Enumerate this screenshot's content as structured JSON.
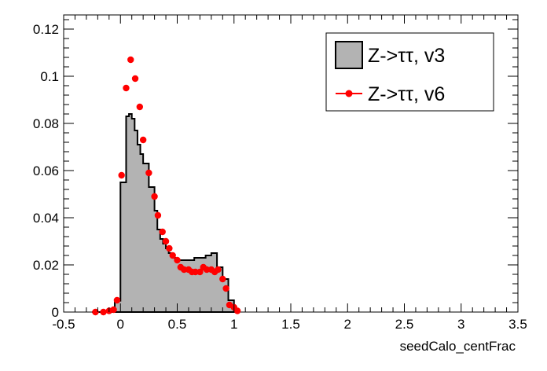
{
  "chart_data": {
    "type": "histogram",
    "xlabel": "seedCalo_centFrac",
    "ylabel": "",
    "xlim": [
      -0.5,
      3.5
    ],
    "ylim": [
      0,
      0.126
    ],
    "grid": false,
    "legend_position": "top-right",
    "xticks": [
      "-0.5",
      "0",
      "0.5",
      "1",
      "1.5",
      "2",
      "2.5",
      "3",
      "3.5"
    ],
    "yticks": [
      "0",
      "0.02",
      "0.04",
      "0.06",
      "0.08",
      "0.1",
      "0.12"
    ],
    "series": [
      {
        "name": "Z->ττ, v3",
        "style": "filled-histogram",
        "color": "#b3b3b3",
        "edges": [
          -0.25,
          -0.2,
          -0.15,
          -0.1,
          -0.05,
          0.0,
          0.05,
          0.075,
          0.1,
          0.125,
          0.15,
          0.175,
          0.2,
          0.25,
          0.3,
          0.325,
          0.35,
          0.375,
          0.4,
          0.425,
          0.45,
          0.475,
          0.5,
          0.55,
          0.6,
          0.65,
          0.7,
          0.75,
          0.8,
          0.85,
          0.9,
          0.95,
          1.0
        ],
        "values": [
          0.0,
          0.0,
          0.0,
          0.0,
          0.0048,
          0.055,
          0.083,
          0.084,
          0.082,
          0.077,
          0.071,
          0.067,
          0.063,
          0.053,
          0.043,
          0.035,
          0.031,
          0.029,
          0.027,
          0.025,
          0.024,
          0.023,
          0.022,
          0.022,
          0.022,
          0.023,
          0.023,
          0.024,
          0.025,
          0.019,
          0.014,
          0.005
        ]
      },
      {
        "name": "Z->ττ, v6",
        "style": "markers",
        "color": "#ff0000",
        "x": [
          -0.22,
          -0.15,
          -0.1,
          -0.06,
          -0.03,
          0.01,
          0.05,
          0.09,
          0.13,
          0.17,
          0.2,
          0.25,
          0.3,
          0.33,
          0.37,
          0.4,
          0.43,
          0.46,
          0.5,
          0.53,
          0.56,
          0.6,
          0.63,
          0.66,
          0.7,
          0.73,
          0.76,
          0.8,
          0.83,
          0.86,
          0.9,
          0.93,
          0.96,
          1.0,
          1.03
        ],
        "y": [
          0.0,
          0.0,
          0.0005,
          0.001,
          0.005,
          0.058,
          0.095,
          0.107,
          0.099,
          0.087,
          0.073,
          0.059,
          0.049,
          0.041,
          0.034,
          0.03,
          0.027,
          0.024,
          0.022,
          0.019,
          0.018,
          0.018,
          0.017,
          0.017,
          0.017,
          0.019,
          0.018,
          0.018,
          0.017,
          0.018,
          0.014,
          0.01,
          0.003,
          0.002,
          0.0005
        ]
      }
    ]
  }
}
